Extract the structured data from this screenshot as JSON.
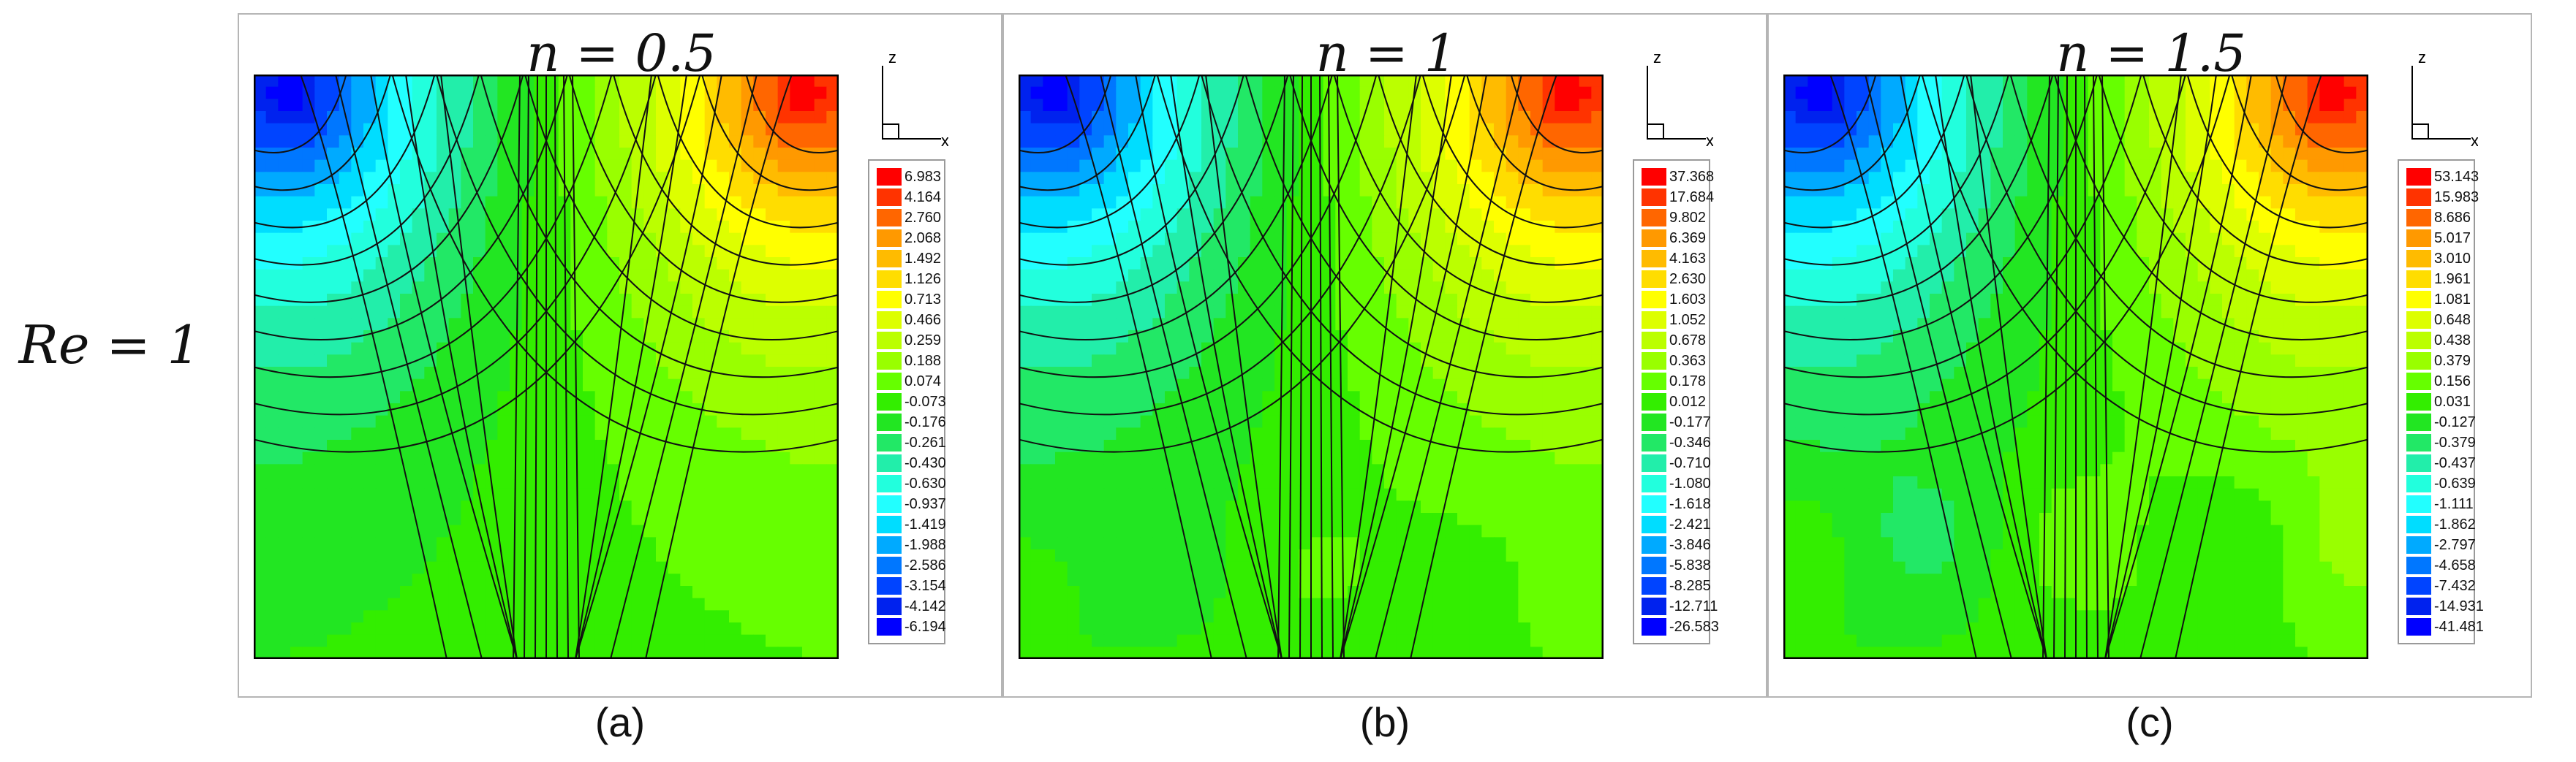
{
  "row_label": "Re = 1",
  "panels": [
    {
      "title": "n = 0.5",
      "caption": "(a)",
      "axis_z": "z",
      "axis_x": "x",
      "legend": [
        "6.983",
        "4.164",
        "2.760",
        "2.068",
        "1.492",
        "1.126",
        "0.713",
        "0.466",
        "0.259",
        "0.188",
        "0.074",
        "-0.073",
        "-0.176",
        "-0.261",
        "-0.430",
        "-0.630",
        "-0.937",
        "-1.419",
        "-1.988",
        "-2.586",
        "-3.154",
        "-4.142",
        "-6.194"
      ]
    },
    {
      "title": "n = 1",
      "caption": "(b)",
      "axis_z": "z",
      "axis_x": "x",
      "legend": [
        "37.368",
        "17.684",
        "9.802",
        "6.369",
        "4.163",
        "2.630",
        "1.603",
        "1.052",
        "0.678",
        "0.363",
        "0.178",
        "0.012",
        "-0.177",
        "-0.346",
        "-0.710",
        "-1.080",
        "-1.618",
        "-2.421",
        "-3.846",
        "-5.838",
        "-8.285",
        "-12.711",
        "-26.583"
      ]
    },
    {
      "title": "n = 1.5",
      "caption": "(c)",
      "axis_z": "z",
      "axis_x": "x",
      "legend": [
        "53.143",
        "15.983",
        "8.686",
        "5.017",
        "3.010",
        "1.961",
        "1.081",
        "0.648",
        "0.438",
        "0.379",
        "0.156",
        "0.031",
        "-0.127",
        "-0.379",
        "-0.437",
        "-0.639",
        "-1.111",
        "-1.862",
        "-2.797",
        "-4.658",
        "-7.432",
        "-14.931",
        "-41.481"
      ]
    },
    {
      "_": "spacer"
    }
  ],
  "colors": {
    "scale": [
      "#ff0000",
      "#ff3300",
      "#ff6600",
      "#ff9900",
      "#ffbb00",
      "#ffdd00",
      "#ffff00",
      "#ddff00",
      "#bbff00",
      "#99ff00",
      "#66ff00",
      "#33ee00",
      "#22e622",
      "#22e866",
      "#22eeaa",
      "#22ffdd",
      "#22ffff",
      "#00ddff",
      "#00aaff",
      "#0077ff",
      "#0044ff",
      "#0022ee",
      "#0000ff"
    ]
  }
}
